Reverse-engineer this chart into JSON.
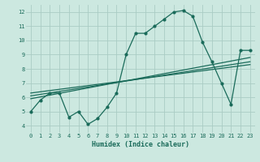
{
  "title": "",
  "xlabel": "Humidex (Indice chaleur)",
  "bg_color": "#cce8e0",
  "grid_color": "#aaccc4",
  "line_color": "#1a6b5a",
  "xlim": [
    -0.5,
    23.5
  ],
  "ylim": [
    3.5,
    12.5
  ],
  "xticks": [
    0,
    1,
    2,
    3,
    4,
    5,
    6,
    7,
    8,
    9,
    10,
    11,
    12,
    13,
    14,
    15,
    16,
    17,
    18,
    19,
    20,
    21,
    22,
    23
  ],
  "yticks": [
    4,
    5,
    6,
    7,
    8,
    9,
    10,
    11,
    12
  ],
  "data_x": [
    0,
    1,
    2,
    3,
    4,
    5,
    6,
    7,
    8,
    9,
    10,
    11,
    12,
    13,
    14,
    15,
    16,
    17,
    18,
    19,
    20,
    21,
    22,
    23
  ],
  "data_y": [
    5.0,
    5.8,
    6.3,
    6.3,
    4.6,
    5.0,
    4.1,
    4.5,
    5.3,
    6.3,
    9.0,
    10.5,
    10.5,
    11.0,
    11.5,
    12.0,
    12.1,
    11.7,
    9.9,
    8.5,
    7.0,
    5.5,
    9.3,
    9.3
  ],
  "trend1_x": [
    0,
    23
  ],
  "trend1_y": [
    5.9,
    8.8
  ],
  "trend2_x": [
    0,
    23
  ],
  "trend2_y": [
    6.1,
    8.5
  ],
  "trend3_x": [
    0,
    23
  ],
  "trend3_y": [
    6.3,
    8.3
  ]
}
